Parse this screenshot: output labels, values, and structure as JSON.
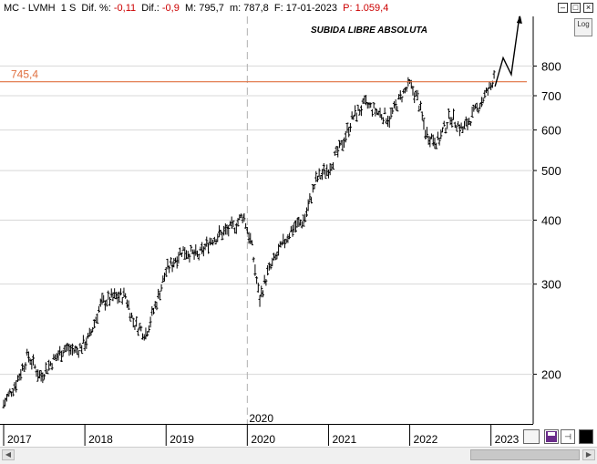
{
  "header": {
    "ticker": "MC - LVMH",
    "period": "1 S",
    "dif_pct_label": "Dif. %:",
    "dif_pct_value": "-0,11",
    "dif_label": "Dif.:",
    "dif_value": "-0,9",
    "m_label": "M:",
    "m_value": "795,7",
    "m2_label": "m:",
    "m2_value": "787,8",
    "f_label": "F:",
    "f_value": "17-01-2023",
    "p_label": "P:",
    "p_value": "1.059,4"
  },
  "log_button": "Log",
  "colors": {
    "resistance": "#e07040",
    "bars": "#000000",
    "grid": "#d8d8d8",
    "price_label_red": "#cc0000"
  },
  "chart_data": {
    "type": "line",
    "subtype": "ohlc-bars",
    "scale": "log",
    "title": "SUBIDA LIBRE ABSOLUTA",
    "ylim": [
      160,
      1000
    ],
    "yticks": [
      200,
      300,
      400,
      500,
      600,
      700,
      800
    ],
    "ytick_labels": [
      "200",
      "300",
      "400",
      "500",
      "600",
      "700",
      "800"
    ],
    "x_labels": [
      "2017",
      "2018",
      "2019",
      "2020",
      "2021",
      "2022",
      "2023"
    ],
    "marker_label": "2020",
    "resistance": {
      "value": 745.4,
      "label": "745,4"
    },
    "series": [
      {
        "x": [
          2017.0,
          2017.15,
          2017.3,
          2017.45,
          2017.6,
          2017.75,
          2017.9,
          2018.05,
          2018.2,
          2018.35,
          2018.5,
          2018.6,
          2018.75,
          2018.9,
          2019.0,
          2019.2,
          2019.4,
          2019.55,
          2019.7,
          2019.85,
          2019.95,
          2020.05,
          2020.15,
          2020.25,
          2020.4,
          2020.55,
          2020.7,
          2020.85,
          2021.0,
          2021.15,
          2021.3,
          2021.45,
          2021.6,
          2021.75,
          2021.9,
          2022.0,
          2022.1,
          2022.2,
          2022.35,
          2022.5,
          2022.65,
          2022.8,
          2022.9,
          2023.0,
          2023.05
        ],
        "values": [
          175,
          192,
          218,
          198,
          212,
          225,
          222,
          235,
          275,
          283,
          285,
          252,
          240,
          282,
          318,
          350,
          340,
          366,
          378,
          390,
          410,
          360,
          280,
          315,
          350,
          385,
          400,
          480,
          505,
          555,
          635,
          675,
          650,
          632,
          700,
          735,
          690,
          590,
          570,
          640,
          600,
          650,
          690,
          730,
          790
        ]
      }
    ],
    "annotation_arrow": {
      "x": [
        2023.05,
        2023.15,
        2023.25,
        2023.35
      ],
      "values": [
        730,
        830,
        770,
        1000
      ]
    }
  }
}
